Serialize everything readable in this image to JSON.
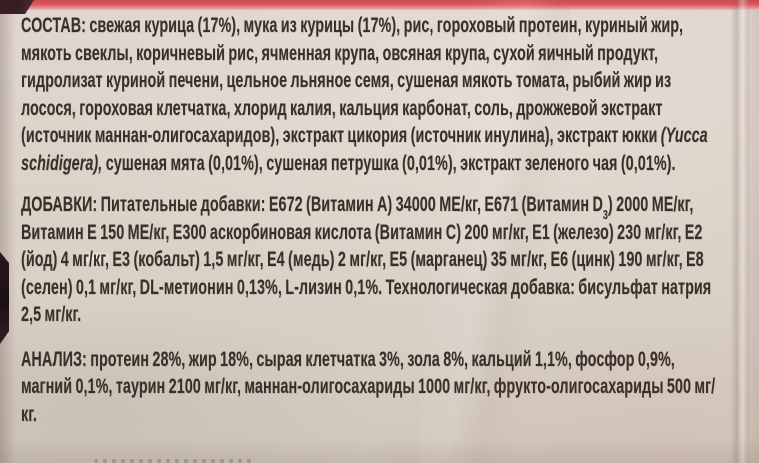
{
  "colors": {
    "backdrop_maroon": "#46242c",
    "edge_dark": "#1c1014",
    "stripe_red": "#cb4c52",
    "stripe_pink": "#f2b4b1",
    "label_beige": "#dcd3c9",
    "text_brown": "#3a3029"
  },
  "sections": {
    "sostav": {
      "heading": "СОСТАВ:",
      "body1": " свежая курица (17%), мука из курицы (17%), рис, гороховый протеин, куриный жир, мякоть свеклы, коричневый рис, ячменная крупа, овсяная крупа, сухой яичный продукт, гидролизат куриной печени, цельное льняное семя, сушеная мякоть томата, рыбий жир из лосося, гороховая клетчатка, хлорид калия, кальция карбонат, соль, дрожжевой экстракт (источник маннан-олигосахаридов), экстракт цикория (источник инулина), экстракт юкки ",
      "latin": "(Yucca schidigera),",
      "body2": " сушеная мята (0,01%), сушеная петрушка (0,01%), экстракт зеленого чая (0,01%)."
    },
    "dobavki": {
      "heading": "ДОБАВКИ:",
      "body1": " Питательные добавки: Е672 (Витамин А) 34000 МЕ/кг, Е671 (Витамин D",
      "subscript": "3",
      "body2": ") 2000 МЕ/кг, Витамин Е 150 МЕ/кг, Е300 аскорбиновая кислота (Витамин С) 200 мг/кг, Е1 (железо) 230 мг/кг, Е2 (йод) 4 мг/кг, Е3 (кобальт) 1,5 мг/кг, Е4 (медь) 2 мг/кг, Е5 (марганец) 35 мг/кг, Е6 (цинк) 190 мг/кг, Е8 (селен) 0,1 мг/кг, DL-метионин 0,13%, L-лизин 0,1%. Технологическая добавка: бисульфат натрия 2,5 мг/кг."
    },
    "analiz": {
      "heading": "АНАЛИЗ:",
      "body": " протеин 28%, жир 18%, сырая клетчатка 3%, зола 8%, кальций 1,1%, фосфор 0,9%, магний 0,1%, таурин 2100 мг/кг, маннан-олигосахариды 1000 мг/кг, фрукто-олигосахариды 500 мг/кг."
    }
  }
}
